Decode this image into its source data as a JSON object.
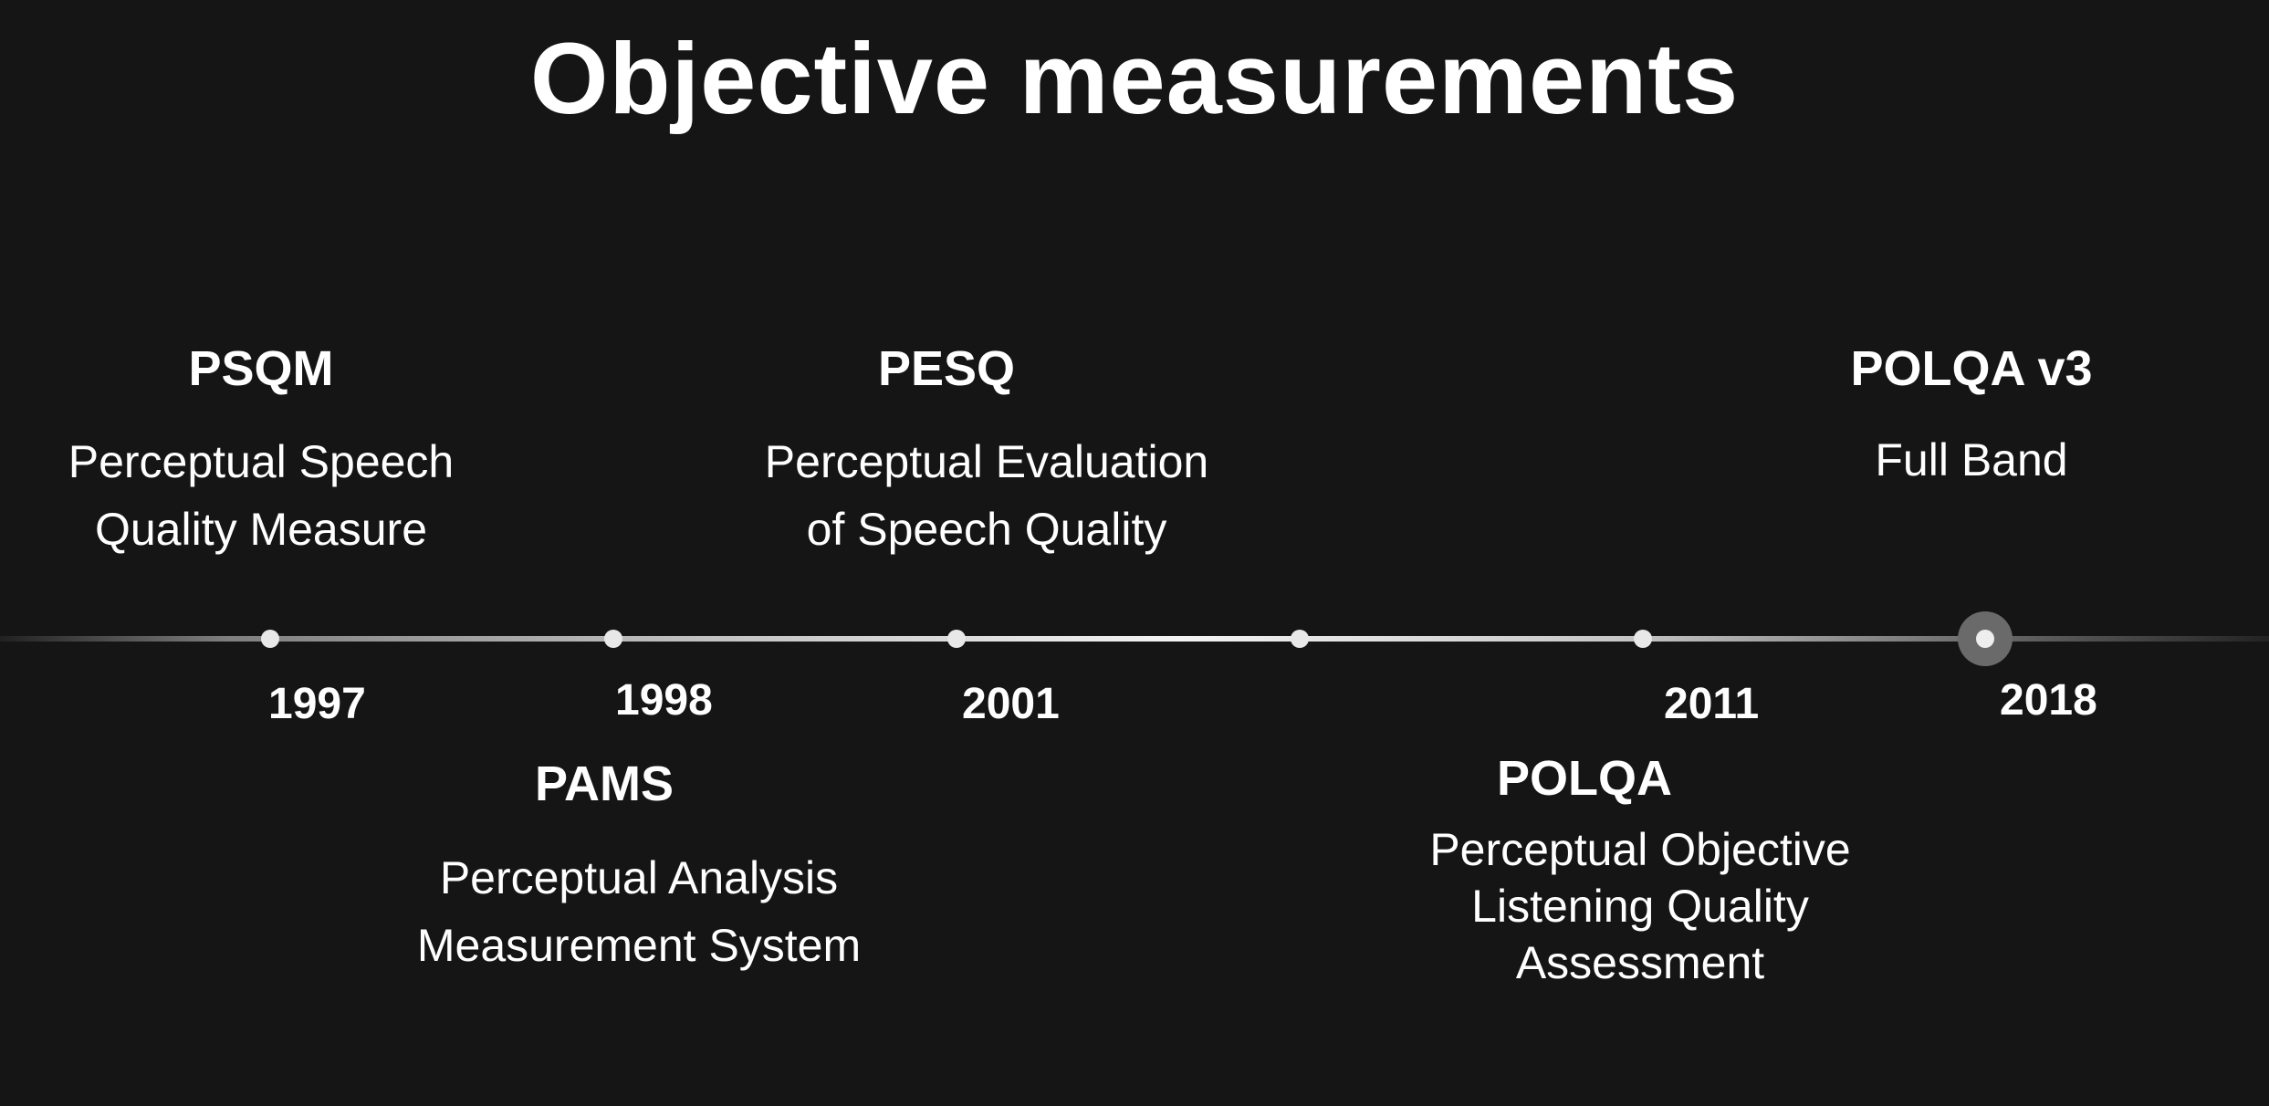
{
  "title": "Objective measurements",
  "events": [
    {
      "name": "PSQM",
      "desc_lines": [
        "Perceptual Speech",
        "Quality Measure"
      ],
      "year": "1997"
    },
    {
      "name": "PAMS",
      "desc_lines": [
        "Perceptual Analysis",
        "Measurement System"
      ],
      "year": "1998"
    },
    {
      "name": "PESQ",
      "desc_lines": [
        "Perceptual Evaluation",
        "of Speech Quality"
      ],
      "year": "2001"
    },
    {
      "name": "POLQA",
      "desc_lines": [
        "Perceptual Objective",
        "Listening Quality",
        "Assessment"
      ],
      "year": "2011"
    },
    {
      "name": "POLQA v3",
      "desc_lines": [
        "Full Band"
      ],
      "year": "2018"
    }
  ],
  "colors": {
    "background": "#151515",
    "text": "#ffffff",
    "dot": "#e8e8e8",
    "highlight_ring": "#6a6a6a"
  }
}
